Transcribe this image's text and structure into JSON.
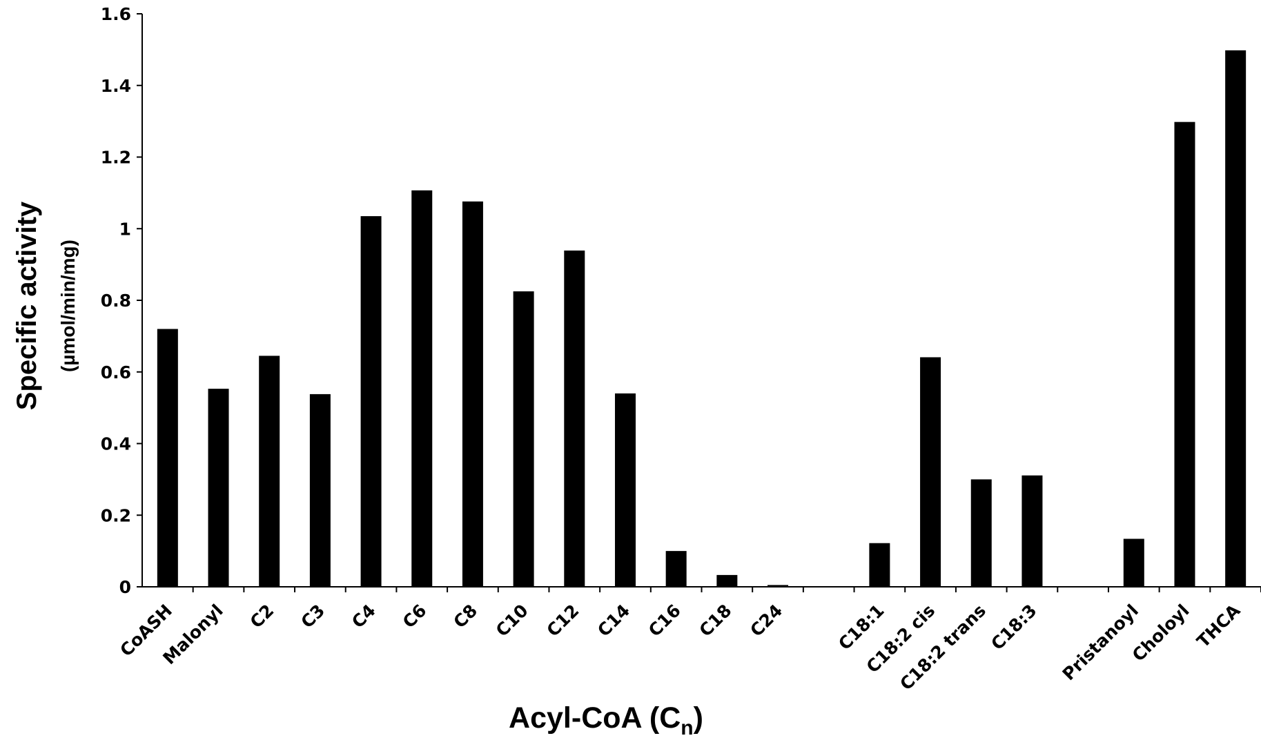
{
  "chart_data": {
    "type": "bar",
    "title": "",
    "xlabel": "Acyl-CoA (C",
    "xlabel_subscript": "n",
    "xlabel_suffix": ")",
    "ylabel": "Specific activity",
    "ylabel_unit": "(µmol/min/mg)",
    "ylim": [
      0,
      1.6
    ],
    "yticks": [
      0,
      0.2,
      0.4,
      0.6,
      0.8,
      1,
      1.2,
      1.4,
      1.6
    ],
    "ytick_labels": [
      "0",
      "0.2",
      "0.4",
      "0.6",
      "0.8",
      "1",
      "1.2",
      "1.4",
      "1.6"
    ],
    "grid": false,
    "bar_color": "#000000",
    "categories": [
      "CoASH",
      "Malonyl",
      "C2",
      "C3",
      "C4",
      "C6",
      "C8",
      "C10",
      "C12",
      "C14",
      "C16",
      "C18",
      "C24",
      "",
      "C18:1",
      "C18:2 cis",
      "C18:2 trans",
      "C18:3",
      "",
      "Pristanoyl",
      "Choloyl",
      "THCA"
    ],
    "values": [
      0.72,
      0.553,
      0.645,
      0.538,
      1.035,
      1.107,
      1.076,
      0.825,
      0.939,
      0.54,
      0.1,
      0.033,
      0.005,
      null,
      0.122,
      0.641,
      0.3,
      0.311,
      null,
      0.134,
      1.298,
      1.498
    ]
  }
}
